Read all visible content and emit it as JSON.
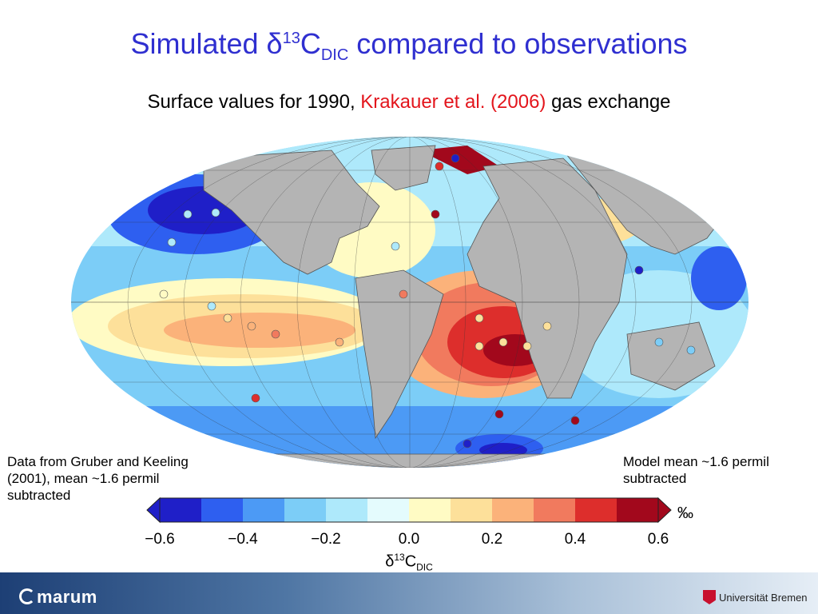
{
  "header": {
    "title_main": "Simulated δ",
    "title_sup": "13",
    "title_c": "C",
    "title_sub": "DIC",
    "title_rest": " compared to observations",
    "subtitle_pre": "Surface values for 1990, ",
    "subtitle_ref": "Krakauer et al. (2006)",
    "subtitle_post": " gas exchange"
  },
  "notes": {
    "left": "Data from Gruber and Keeling (2001), mean ~1.6 permil subtracted",
    "right": "Model mean ~1.6 permil subtracted"
  },
  "colorbar": {
    "unit": "‰",
    "ticks": [
      "−0.6",
      "−0.4",
      "−0.2",
      "0.0",
      "0.2",
      "0.4",
      "0.6"
    ],
    "label_delta": "δ",
    "label_sup": "13",
    "label_c": "C",
    "label_sub": "DIC",
    "colors": [
      "#1f1fc8",
      "#2e5ff0",
      "#4c9af5",
      "#7ccdf7",
      "#aee9fb",
      "#e4fbfd",
      "#fffbc4",
      "#fde09a",
      "#fbb27a",
      "#f17a5e",
      "#dd2e2c",
      "#a2081c"
    ]
  },
  "footer": {
    "left_logo": "marum",
    "right_logo": "Universität Bremen"
  }
}
